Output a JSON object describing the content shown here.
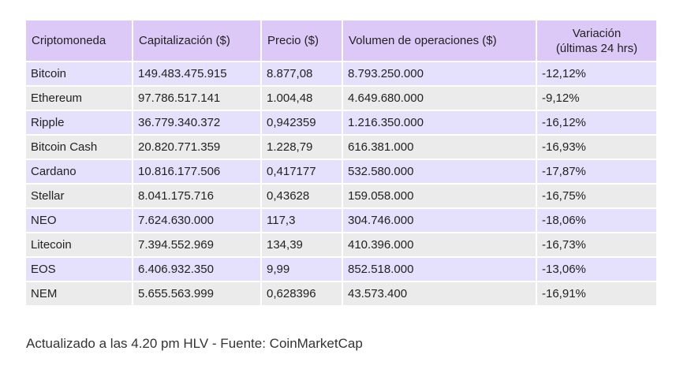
{
  "headers": [
    "Criptomoneda",
    "Capitalización ($)",
    "Precio ($)",
    "Volumen de operaciones ($)",
    "Variación",
    "(últimas 24 hrs)"
  ],
  "rows": [
    [
      "Bitcoin",
      "149.483.475.915",
      "8.877,08",
      "8.793.250.000",
      "-12,12%"
    ],
    [
      "Ethereum",
      "97.786.517.141",
      "1.004,48",
      "4.649.680.000",
      "-9,12%"
    ],
    [
      "Ripple",
      "36.779.340.372",
      "0,942359",
      "1.216.350.000",
      "-16,12%"
    ],
    [
      "Bitcoin Cash",
      "20.820.771.359",
      "1.228,79",
      "616.381.000",
      "-16,93%"
    ],
    [
      "Cardano",
      "10.816.177.506",
      "0,417177",
      "532.580.000",
      "-17,87%"
    ],
    [
      "Stellar",
      "8.041.175.716",
      "0,43628",
      "159.058.000",
      "-16,75%"
    ],
    [
      "NEO",
      "7.624.630.000",
      "117,3",
      "304.746.000",
      "-18,06%"
    ],
    [
      "Litecoin",
      "7.394.552.969",
      "134,39",
      "410.396.000",
      "-16,73%"
    ],
    [
      "EOS",
      "6.406.932.350",
      "9,99",
      "852.518.000",
      "-13,06%"
    ],
    [
      "NEM",
      "5.655.563.999",
      "0,628396",
      "43.573.400",
      "-16,91%"
    ]
  ],
  "footer": "Actualizado a las 4.20 pm HLV - Fuente: CoinMarketCap",
  "colors": {
    "header_bg": "#dcc9f7",
    "row_odd": "#e5e0fc",
    "row_even": "#ebebeb"
  }
}
